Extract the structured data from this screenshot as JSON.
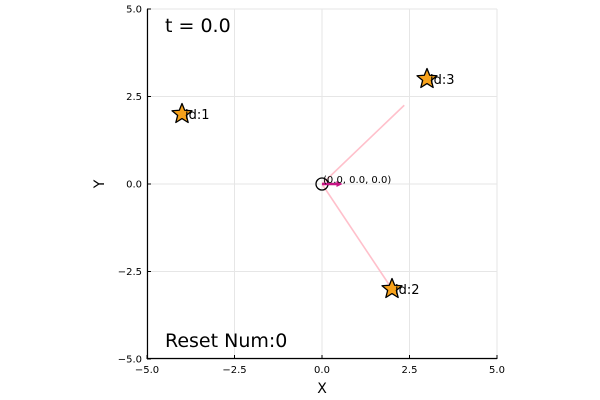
{
  "chart_data": {
    "type": "scatter",
    "title": "",
    "xlabel": "X",
    "ylabel": "Y",
    "xlim": [
      -5,
      5
    ],
    "ylim": [
      -5,
      5
    ],
    "xticks": [
      -5,
      -2.5,
      0,
      2.5,
      5
    ],
    "yticks": [
      -5,
      -2.5,
      0,
      2.5,
      5
    ],
    "xtick_labels": [
      "−5.0",
      "−2.5",
      "0.0",
      "2.5",
      "5.0"
    ],
    "ytick_labels": [
      "−5.0",
      "−2.5",
      "0.0",
      "2.5",
      "5.0"
    ],
    "grid": true,
    "aspect": "equal",
    "time_text": "t = 0.0",
    "reset_text": "Reset Num:0",
    "landmarks": [
      {
        "label": "id:1",
        "x": -4,
        "y": 2
      },
      {
        "label": "id:2",
        "x": 2,
        "y": -3
      },
      {
        "label": "id:3",
        "x": 3,
        "y": 3
      }
    ],
    "robot": {
      "x": 0,
      "y": 0,
      "theta": 0,
      "pose_text": "(0.0, 0.0, 0.0)",
      "heading_length": 0.5
    },
    "observation_rays": [
      {
        "to_x": 2.35,
        "to_y": 2.25
      },
      {
        "to_x": 2.0,
        "to_y": -3.0
      }
    ],
    "colors": {
      "landmark_fill": "#f7a21b",
      "heading": "#c71585",
      "ray": "#ffc0cb",
      "grid": "#e6e6e6"
    }
  }
}
